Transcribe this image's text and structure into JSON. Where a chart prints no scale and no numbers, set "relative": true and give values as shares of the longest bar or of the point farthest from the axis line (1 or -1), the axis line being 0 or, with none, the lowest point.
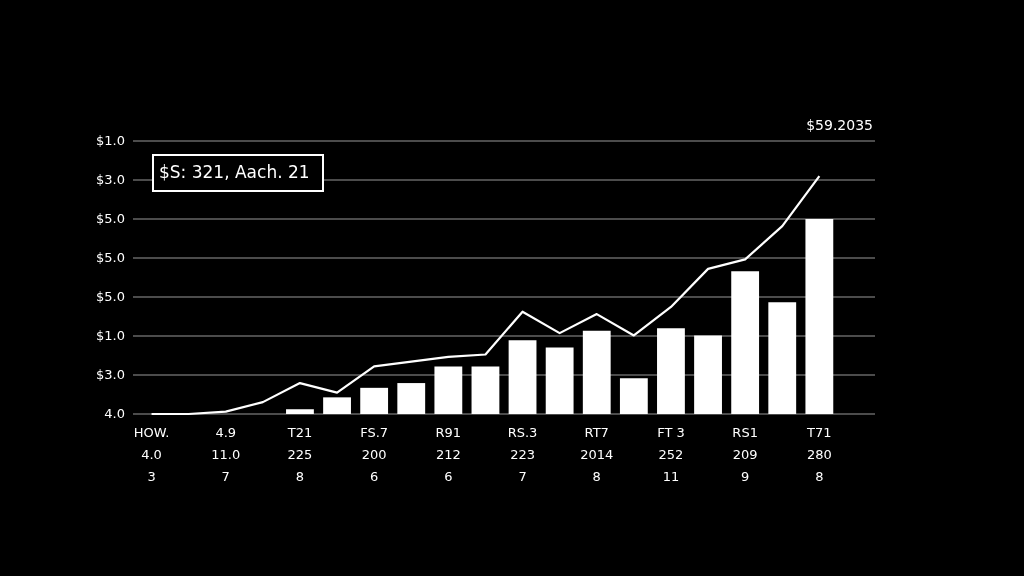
{
  "chart_data": {
    "type": "bar",
    "relative": true,
    "categories": [
      "HOW.\n4.0\n3",
      null,
      "4.9\n11.0\n7",
      null,
      "T21\n225\n8",
      null,
      "FS.7\n200\n6",
      null,
      "R91\n212\n6",
      null,
      "RS.3\n223\n7",
      null,
      "RT7\n2014\n8",
      null,
      "FT 3\n252\n11",
      null,
      "RS1\n209\n9",
      null,
      "T71\n280\n8",
      null
    ],
    "grid": "y",
    "legend": false,
    "series": [
      {
        "color": "#ffffff",
        "values": [
          null,
          null,
          null,
          null,
          0.02,
          0.07,
          0.11,
          0.13,
          0.2,
          0.2,
          0.31,
          0.28,
          0.35,
          0.15,
          0.36,
          0.33,
          0.6,
          0.47,
          0.82,
          null
        ]
      },
      {
        "type": "line",
        "color": "#ffffff",
        "values": [
          0,
          0,
          0.01,
          0.05,
          0.13,
          0.09,
          0.2,
          0.22,
          0.24,
          0.25,
          0.43,
          0.34,
          0.42,
          0.33,
          0.45,
          0.61,
          0.65,
          0.79,
          1,
          null
        ]
      }
    ],
    "annotations": [
      "$S: 321, Aach. 21",
      "$59.2035",
      "4.0",
      "$3.0",
      "$1.0",
      "$5.0",
      "$5.0",
      "$5.0",
      "$3.0",
      "$1.0"
    ]
  }
}
